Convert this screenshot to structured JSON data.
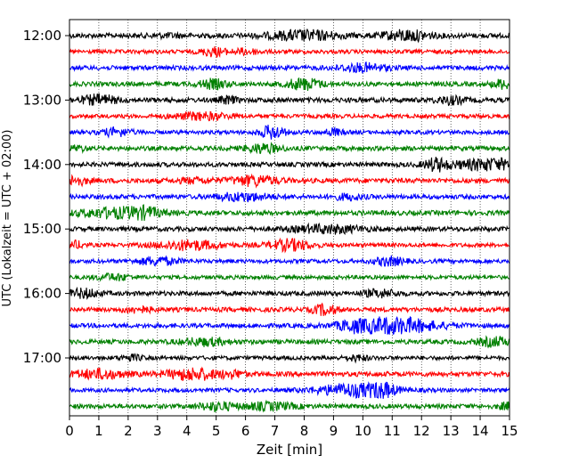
{
  "chart_data": {
    "type": "line",
    "title": "",
    "xlabel": "Zeit  [min]",
    "ylabel": "UTC (Lokalzeit = UTC + 02:00)",
    "xlim": [
      0,
      15
    ],
    "x_ticks": [
      "0",
      "1",
      "2",
      "3",
      "4",
      "5",
      "6",
      "7",
      "8",
      "9",
      "10",
      "11",
      "12",
      "13",
      "14",
      "15"
    ],
    "y_ticks": [
      "12:00",
      "13:00",
      "14:00",
      "15:00",
      "16:00",
      "17:00"
    ],
    "grid": "vertical dotted lines at each minute",
    "trace_interval_min": 15,
    "colors": [
      "#000000",
      "#ff0000",
      "#0000ff",
      "#008000"
    ],
    "traces": [
      {
        "start": "12:00",
        "color": "#000000",
        "base": 0.3,
        "bursts": [
          [
            3.4,
            0.6,
            0.15
          ],
          [
            8.0,
            1.2,
            0.55
          ],
          [
            11.5,
            0.8,
            0.6
          ]
        ]
      },
      {
        "start": "12:15",
        "color": "#ff0000",
        "base": 0.25,
        "bursts": [
          [
            4.9,
            0.4,
            0.5
          ],
          [
            6.0,
            0.5,
            0.3
          ]
        ]
      },
      {
        "start": "12:30",
        "color": "#0000ff",
        "base": 0.28,
        "bursts": [
          [
            10.0,
            0.8,
            0.45
          ]
        ]
      },
      {
        "start": "12:45",
        "color": "#008000",
        "base": 0.28,
        "bursts": [
          [
            4.9,
            0.5,
            0.5
          ],
          [
            8.0,
            0.6,
            0.65
          ],
          [
            14.8,
            0.4,
            0.5
          ]
        ]
      },
      {
        "start": "13:00",
        "color": "#000000",
        "base": 0.3,
        "bursts": [
          [
            1.0,
            0.6,
            0.55
          ],
          [
            5.4,
            0.3,
            0.4
          ],
          [
            13.0,
            0.5,
            0.4
          ]
        ]
      },
      {
        "start": "13:15",
        "color": "#ff0000",
        "base": 0.25,
        "bursts": [
          [
            4.5,
            1.0,
            0.4
          ]
        ]
      },
      {
        "start": "13:30",
        "color": "#0000ff",
        "base": 0.25,
        "bursts": [
          [
            1.6,
            0.5,
            0.45
          ],
          [
            6.9,
            0.4,
            0.8
          ],
          [
            9.0,
            0.3,
            0.4
          ]
        ]
      },
      {
        "start": "13:45",
        "color": "#008000",
        "base": 0.28,
        "bursts": [
          [
            0.3,
            0.3,
            0.3
          ],
          [
            6.6,
            0.6,
            0.5
          ]
        ]
      },
      {
        "start": "14:00",
        "color": "#000000",
        "base": 0.28,
        "bursts": [
          [
            12.5,
            0.4,
            0.7
          ],
          [
            14.3,
            1.2,
            0.65
          ]
        ]
      },
      {
        "start": "14:15",
        "color": "#ff0000",
        "base": 0.3,
        "bursts": [
          [
            0.2,
            0.4,
            0.5
          ],
          [
            6.3,
            0.8,
            0.55
          ],
          [
            4.3,
            0.6,
            0.25
          ]
        ]
      },
      {
        "start": "14:30",
        "color": "#0000ff",
        "base": 0.28,
        "bursts": [
          [
            5.9,
            0.9,
            0.45
          ],
          [
            9.5,
            0.5,
            0.3
          ]
        ]
      },
      {
        "start": "14:45",
        "color": "#008000",
        "base": 0.3,
        "bursts": [
          [
            1.6,
            1.3,
            0.55
          ],
          [
            2.6,
            0.5,
            0.4
          ]
        ]
      },
      {
        "start": "15:00",
        "color": "#000000",
        "base": 0.28,
        "bursts": [
          [
            8.8,
            1.2,
            0.45
          ]
        ]
      },
      {
        "start": "15:15",
        "color": "#ff0000",
        "base": 0.25,
        "bursts": [
          [
            4.1,
            1.1,
            0.55
          ],
          [
            7.5,
            0.7,
            0.65
          ],
          [
            0.2,
            0.3,
            0.4
          ]
        ]
      },
      {
        "start": "15:30",
        "color": "#0000ff",
        "base": 0.25,
        "bursts": [
          [
            3.0,
            0.7,
            0.45
          ],
          [
            10.9,
            0.5,
            0.5
          ]
        ]
      },
      {
        "start": "15:45",
        "color": "#008000",
        "base": 0.25,
        "bursts": [
          [
            1.5,
            0.6,
            0.35
          ]
        ]
      },
      {
        "start": "16:00",
        "color": "#000000",
        "base": 0.28,
        "bursts": [
          [
            0.5,
            0.5,
            0.5
          ],
          [
            10.6,
            0.6,
            0.4
          ]
        ]
      },
      {
        "start": "16:15",
        "color": "#ff0000",
        "base": 0.28,
        "bursts": [
          [
            8.7,
            0.4,
            0.6
          ],
          [
            2.3,
            0.5,
            0.3
          ]
        ]
      },
      {
        "start": "16:30",
        "color": "#0000ff",
        "base": 0.28,
        "bursts": [
          [
            11.0,
            1.5,
            0.95
          ],
          [
            9.6,
            0.4,
            0.35
          ]
        ]
      },
      {
        "start": "16:45",
        "color": "#008000",
        "base": 0.28,
        "bursts": [
          [
            4.6,
            0.8,
            0.4
          ],
          [
            14.5,
            0.6,
            0.5
          ]
        ]
      },
      {
        "start": "17:00",
        "color": "#000000",
        "base": 0.25,
        "bursts": [
          [
            2.1,
            0.4,
            0.3
          ],
          [
            9.8,
            0.4,
            0.3
          ]
        ]
      },
      {
        "start": "17:15",
        "color": "#ff0000",
        "base": 0.3,
        "bursts": [
          [
            1.0,
            0.9,
            0.5
          ],
          [
            4.2,
            0.9,
            0.65
          ],
          [
            5.6,
            0.4,
            0.35
          ]
        ]
      },
      {
        "start": "17:30",
        "color": "#0000ff",
        "base": 0.25,
        "bursts": [
          [
            9.7,
            1.3,
            0.75
          ],
          [
            10.7,
            0.4,
            0.55
          ]
        ]
      },
      {
        "start": "17:45",
        "color": "#008000",
        "base": 0.28,
        "bursts": [
          [
            5.0,
            0.6,
            0.45
          ],
          [
            6.8,
            0.9,
            0.4
          ],
          [
            14.9,
            0.3,
            0.35
          ]
        ]
      }
    ]
  }
}
